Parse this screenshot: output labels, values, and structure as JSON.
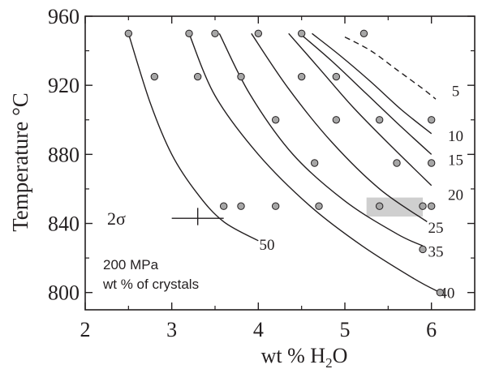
{
  "chart_data": {
    "type": "scatter",
    "xlabel": "wt % H2O",
    "xlabel_parts": {
      "main": "wt % H",
      "sub": "2",
      "end": "O"
    },
    "ylabel": "Temperature °C",
    "xlim": [
      2,
      6.5
    ],
    "ylim": [
      790,
      960
    ],
    "x_ticks": [
      2,
      3,
      4,
      5,
      6
    ],
    "y_ticks": [
      800,
      840,
      880,
      920,
      960
    ],
    "x_tick_labels": [
      "2",
      "3",
      "4",
      "5",
      "6"
    ],
    "y_tick_labels": [
      "800",
      "840",
      "880",
      "920",
      "960"
    ],
    "grid": false,
    "annotations": {
      "pressure": "200 MPa",
      "crystals": "wt % of crystals",
      "error_symbol": "2σ"
    },
    "points": [
      {
        "x": 2.5,
        "y": 950
      },
      {
        "x": 3.2,
        "y": 950
      },
      {
        "x": 3.5,
        "y": 950
      },
      {
        "x": 4.0,
        "y": 950
      },
      {
        "x": 4.5,
        "y": 950
      },
      {
        "x": 5.22,
        "y": 950
      },
      {
        "x": 2.8,
        "y": 925
      },
      {
        "x": 3.3,
        "y": 925
      },
      {
        "x": 3.8,
        "y": 925
      },
      {
        "x": 4.5,
        "y": 925
      },
      {
        "x": 4.9,
        "y": 925
      },
      {
        "x": 4.2,
        "y": 900
      },
      {
        "x": 4.9,
        "y": 900
      },
      {
        "x": 5.4,
        "y": 900
      },
      {
        "x": 6.0,
        "y": 900
      },
      {
        "x": 4.65,
        "y": 875
      },
      {
        "x": 5.6,
        "y": 875
      },
      {
        "x": 6.0,
        "y": 875
      },
      {
        "x": 3.6,
        "y": 850
      },
      {
        "x": 3.8,
        "y": 850
      },
      {
        "x": 4.2,
        "y": 850
      },
      {
        "x": 4.7,
        "y": 850
      },
      {
        "x": 5.4,
        "y": 850
      },
      {
        "x": 5.9,
        "y": 850
      },
      {
        "x": 6.0,
        "y": 850
      },
      {
        "x": 5.9,
        "y": 825
      },
      {
        "x": 6.1,
        "y": 800
      }
    ],
    "isopleths": [
      {
        "label": "5",
        "dashed": true,
        "label_at": [
          6.28,
          917
        ],
        "x": [
          5.0,
          5.3,
          5.6,
          5.9,
          6.05
        ],
        "y": [
          948,
          940,
          929,
          918,
          912
        ]
      },
      {
        "label": "10",
        "dashed": false,
        "label_at": [
          6.28,
          891
        ],
        "x": [
          4.62,
          4.95,
          5.3,
          5.65,
          6.0
        ],
        "y": [
          950,
          937,
          922,
          906,
          892
        ]
      },
      {
        "label": "15",
        "dashed": false,
        "label_at": [
          6.28,
          877
        ],
        "x": [
          4.48,
          4.85,
          5.25,
          5.65,
          6.0
        ],
        "y": [
          950,
          934,
          915,
          896,
          880
        ]
      },
      {
        "label": "20",
        "dashed": false,
        "label_at": [
          6.28,
          857
        ],
        "x": [
          4.35,
          4.7,
          5.1,
          5.55,
          6.0
        ],
        "y": [
          950,
          930,
          907,
          884,
          862
        ]
      },
      {
        "label": "25",
        "dashed": false,
        "label_at": [
          6.05,
          838
        ],
        "x": [
          3.92,
          4.35,
          4.85,
          5.4,
          5.95
        ],
        "y": [
          950,
          918,
          887,
          860,
          841
        ]
      },
      {
        "label": "35",
        "dashed": false,
        "label_at": [
          6.05,
          824
        ],
        "x": [
          3.55,
          3.9,
          4.4,
          5.0,
          5.6,
          5.9
        ],
        "y": [
          950,
          915,
          880,
          853,
          834,
          827
        ]
      },
      {
        "label": "40",
        "dashed": false,
        "label_at": [
          6.18,
          800
        ],
        "x": [
          3.2,
          3.5,
          4.0,
          4.6,
          5.2,
          5.8,
          6.1
        ],
        "y": [
          950,
          914,
          880,
          850,
          827,
          808,
          800
        ]
      },
      {
        "label": "50",
        "dashed": false,
        "label_at": [
          4.1,
          828
        ],
        "x": [
          2.5,
          2.75,
          3.0,
          3.3,
          3.6,
          4.0
        ],
        "y": [
          950,
          910,
          880,
          857,
          841,
          830
        ]
      }
    ],
    "shaded_region": {
      "x": [
        5.25,
        5.9
      ],
      "y": [
        844,
        855
      ]
    },
    "error_bar": {
      "x_center": 3.3,
      "x_half_width": 0.3,
      "y": 843,
      "cap_up": 6,
      "cap_down": 4
    }
  }
}
